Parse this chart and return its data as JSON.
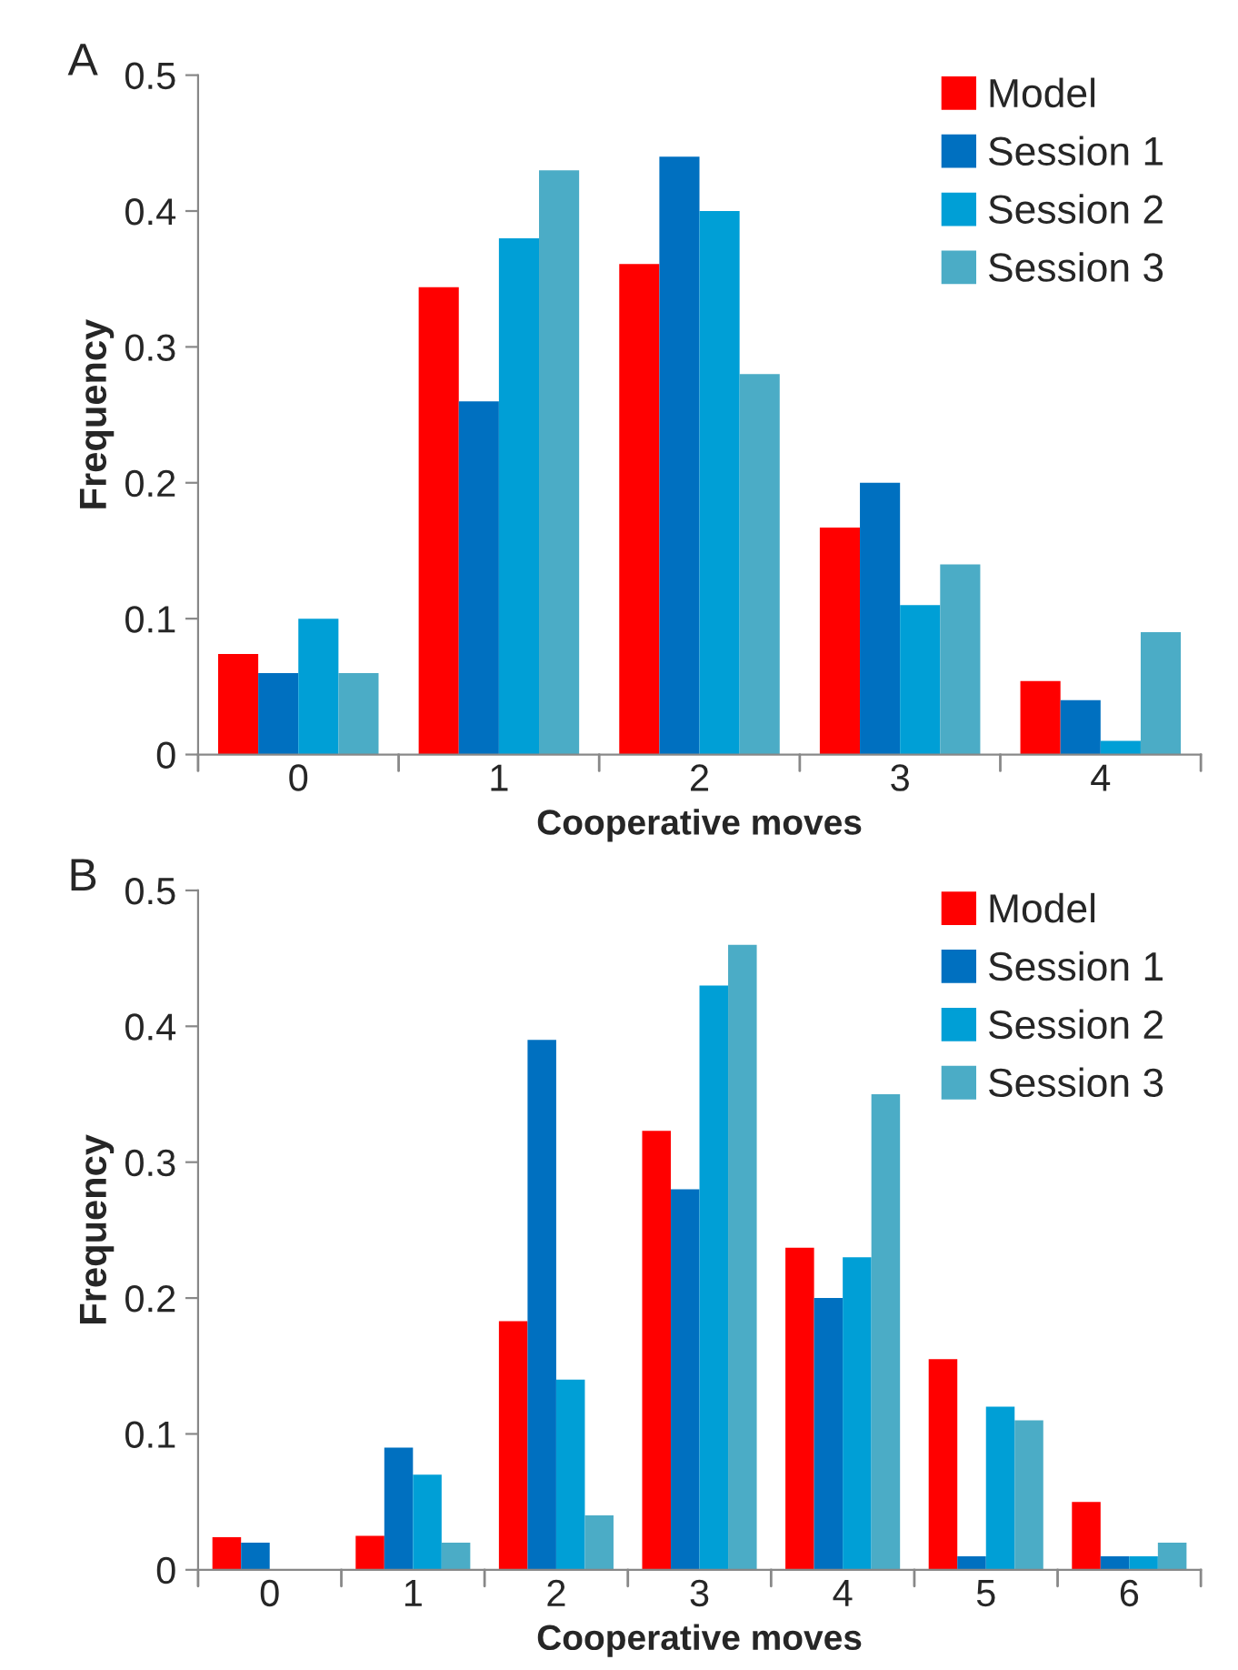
{
  "chart_data": [
    {
      "type": "bar",
      "title": "A",
      "xlabel": "Cooperative moves",
      "ylabel": "Frequency",
      "categories": [
        "0",
        "1",
        "2",
        "3",
        "4"
      ],
      "series": [
        {
          "name": "Model",
          "color": "#ff0000",
          "values": [
            0.074,
            0.344,
            0.361,
            0.167,
            0.054
          ]
        },
        {
          "name": "Session 1",
          "color": "#0070c0",
          "values": [
            0.06,
            0.26,
            0.44,
            0.2,
            0.04
          ]
        },
        {
          "name": "Session 2",
          "color": "#009fd6",
          "values": [
            0.1,
            0.38,
            0.4,
            0.11,
            0.01
          ]
        },
        {
          "name": "Session 3",
          "color": "#4bacc6",
          "values": [
            0.06,
            0.43,
            0.28,
            0.14,
            0.09
          ]
        }
      ],
      "ylim": [
        0,
        0.5
      ],
      "yticks": [
        {
          "value": 0,
          "label": "0"
        },
        0.1,
        0.2,
        0.3,
        0.4,
        0.5
      ],
      "grid": false,
      "legend": "top right"
    },
    {
      "type": "bar",
      "title": "B",
      "xlabel": "Cooperative moves",
      "ylabel": "Frequency",
      "categories": [
        "0",
        "1",
        "2",
        "3",
        "4",
        "5",
        "6"
      ],
      "series": [
        {
          "name": "Model",
          "color": "#ff0000",
          "values": [
            0.024,
            0.025,
            0.183,
            0.323,
            0.237,
            0.155,
            0.05
          ]
        },
        {
          "name": "Session 1",
          "color": "#0070c0",
          "values": [
            0.02,
            0.09,
            0.39,
            0.28,
            0.2,
            0.01,
            0.01
          ]
        },
        {
          "name": "Session 2",
          "color": "#009fd6",
          "values": [
            null,
            0.07,
            0.14,
            0.43,
            0.23,
            0.12,
            0.01
          ]
        },
        {
          "name": "Session 3",
          "color": "#4bacc6",
          "values": [
            null,
            0.02,
            0.04,
            0.46,
            0.35,
            0.11,
            0.02
          ]
        }
      ],
      "ylim": [
        0,
        0.5
      ],
      "yticks": [
        {
          "value": 0,
          "label": "0"
        },
        0.1,
        0.2,
        0.3,
        0.4,
        0.5
      ],
      "grid": false,
      "legend": "top right"
    }
  ]
}
